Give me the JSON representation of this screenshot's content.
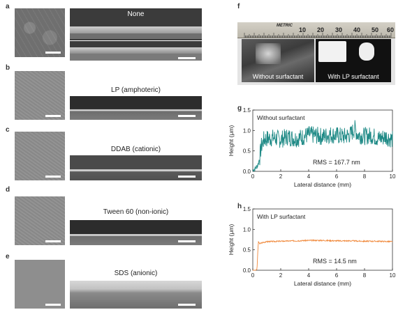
{
  "panels": {
    "a": {
      "label": "a",
      "caption": "None"
    },
    "b": {
      "label": "b",
      "caption": "LP (amphoteric)"
    },
    "c": {
      "label": "c",
      "caption": "DDAB (cationic)"
    },
    "d": {
      "label": "d",
      "caption": "Tween 60 (non-ionic)"
    },
    "e": {
      "label": "e",
      "caption": "SDS (anionic)"
    },
    "f": {
      "label": "f",
      "left_caption": "Without surfactant",
      "right_caption": "With LP surfactant",
      "ruler_text": "METRIC",
      "ruler_numbers": [
        "10",
        "20",
        "30",
        "40",
        "50",
        "60"
      ]
    },
    "g": {
      "label": "g"
    },
    "h": {
      "label": "h"
    }
  },
  "colors": {
    "teal": "#1f8a86",
    "orange": "#f0883a"
  },
  "chart_data": [
    {
      "type": "line",
      "panel": "g",
      "annotation": "Without surfactant",
      "rms": "RMS = 167.7 nm",
      "xlabel": "Lateral distance (mm)",
      "ylabel": "Height (μm)",
      "xlim": [
        0,
        10
      ],
      "ylim": [
        0,
        1.5
      ],
      "xticks": [
        "0",
        "2",
        "4",
        "6",
        "8",
        "10"
      ],
      "yticks": [
        "0.0",
        "0.5",
        "1.0",
        "1.5"
      ],
      "series": [
        {
          "color": "#1f8a86",
          "seed": 7,
          "x": [
            0,
            0.1,
            0.2,
            0.3,
            0.4,
            0.5,
            0.6,
            0.8,
            1,
            1.5,
            2,
            2.5,
            3,
            3.5,
            4,
            4.5,
            5,
            5.5,
            6,
            6.5,
            7,
            7.3,
            7.5,
            8,
            8.5,
            9,
            9.5,
            10
          ],
          "y": [
            0.02,
            0.05,
            0.08,
            0.12,
            0.2,
            0.35,
            0.6,
            0.78,
            0.8,
            0.82,
            0.78,
            0.85,
            0.8,
            0.83,
            0.9,
            0.88,
            0.85,
            0.9,
            0.88,
            0.85,
            0.9,
            1.05,
            0.9,
            0.86,
            0.88,
            0.8,
            0.85,
            0.78
          ],
          "noise": 0.22
        }
      ]
    },
    {
      "type": "line",
      "panel": "h",
      "annotation": "With LP surfactant",
      "rms": "RMS = 14.5 nm",
      "xlabel": "Lateral distance (mm)",
      "ylabel": "Height (μm)",
      "xlim": [
        0,
        10
      ],
      "ylim": [
        0,
        1.5
      ],
      "xticks": [
        "0",
        "2",
        "4",
        "6",
        "8",
        "10"
      ],
      "yticks": [
        "0.0",
        "0.5",
        "1.0",
        "1.5"
      ],
      "series": [
        {
          "color": "#f0883a",
          "seed": 3,
          "x": [
            0,
            0.2,
            0.3,
            0.35,
            0.4,
            0.5,
            0.7,
            1,
            2,
            3,
            4,
            5,
            6,
            7,
            8,
            9,
            10
          ],
          "y": [
            0.0,
            0.0,
            0.02,
            0.4,
            0.7,
            0.65,
            0.68,
            0.7,
            0.71,
            0.72,
            0.73,
            0.73,
            0.72,
            0.72,
            0.71,
            0.71,
            0.7
          ],
          "noise": 0.015
        }
      ]
    }
  ]
}
